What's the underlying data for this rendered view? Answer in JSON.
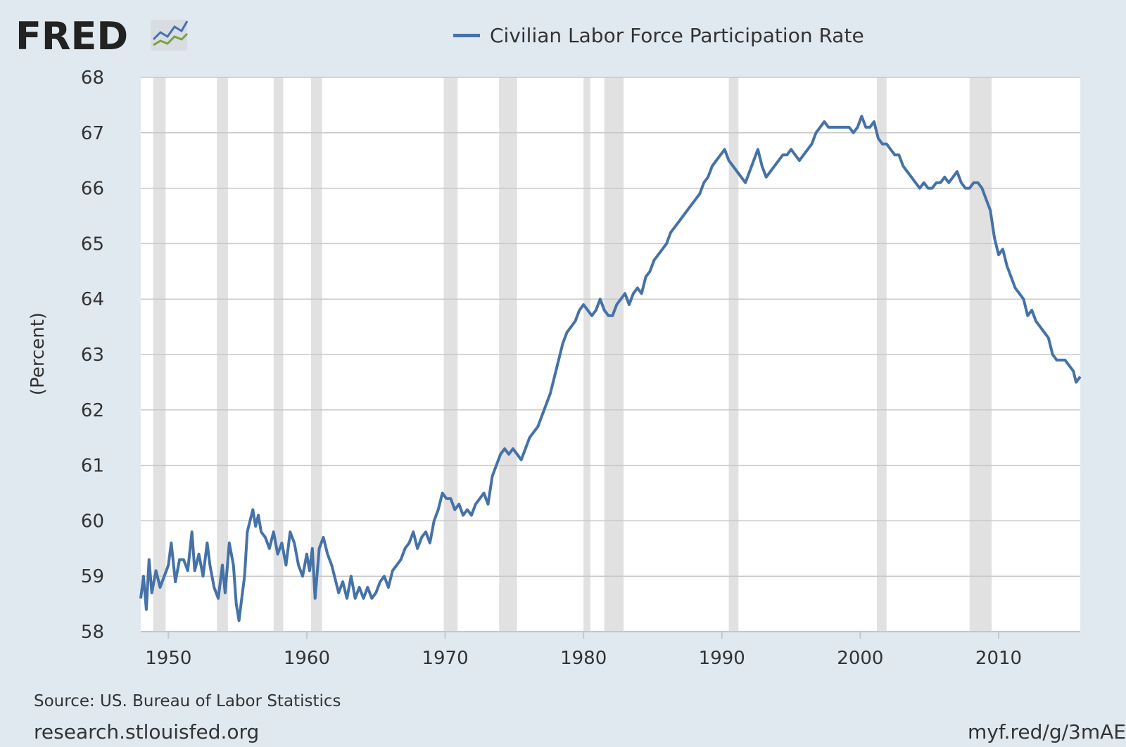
{
  "branding": {
    "logo_text": "FRED",
    "logo_icon": "fred-line-graph-icon"
  },
  "footer": {
    "source": "Source: US. Bureau of Labor Statistics",
    "site": "research.stlouisfed.org",
    "short_url": "myf.red/g/3mAE"
  },
  "colors": {
    "background": "#e1e9f0",
    "plot_bg": "#ffffff",
    "series": "#4572a7",
    "recession": "#e1e1e1",
    "grid": "#c8c8c8"
  },
  "chart_data": {
    "type": "line",
    "title": "",
    "xlabel": "",
    "ylabel": "(Percent)",
    "xlim": [
      1948.0,
      2015.9
    ],
    "ylim": [
      58,
      68
    ],
    "yticks": [
      "58",
      "59",
      "60",
      "61",
      "62",
      "63",
      "64",
      "65",
      "66",
      "67",
      "68"
    ],
    "xticks": [
      "1950",
      "1960",
      "1970",
      "1980",
      "1990",
      "2000",
      "2010"
    ],
    "grid": true,
    "legend": "top-center",
    "recessions": [
      [
        1948.9,
        1949.8
      ],
      [
        1953.5,
        1954.3
      ],
      [
        1957.6,
        1958.3
      ],
      [
        1960.3,
        1961.1
      ],
      [
        1969.9,
        1970.9
      ],
      [
        1973.9,
        1975.2
      ],
      [
        1980.0,
        1980.5
      ],
      [
        1981.5,
        1982.9
      ],
      [
        1990.5,
        1991.2
      ],
      [
        2001.2,
        2001.9
      ],
      [
        2007.9,
        2009.5
      ]
    ],
    "series": [
      {
        "name": "Civilian Labor Force Participation Rate",
        "color": "#4572a7",
        "points": [
          [
            1948.0,
            58.6
          ],
          [
            1948.2,
            59.0
          ],
          [
            1948.4,
            58.4
          ],
          [
            1948.6,
            59.3
          ],
          [
            1948.8,
            58.7
          ],
          [
            1949.1,
            59.1
          ],
          [
            1949.4,
            58.8
          ],
          [
            1949.7,
            59.0
          ],
          [
            1950.0,
            59.2
          ],
          [
            1950.2,
            59.6
          ],
          [
            1950.5,
            58.9
          ],
          [
            1950.8,
            59.3
          ],
          [
            1951.1,
            59.3
          ],
          [
            1951.4,
            59.1
          ],
          [
            1951.7,
            59.8
          ],
          [
            1951.9,
            59.1
          ],
          [
            1952.2,
            59.4
          ],
          [
            1952.5,
            59.0
          ],
          [
            1952.8,
            59.6
          ],
          [
            1953.0,
            59.2
          ],
          [
            1953.3,
            58.8
          ],
          [
            1953.6,
            58.6
          ],
          [
            1953.9,
            59.2
          ],
          [
            1954.1,
            58.7
          ],
          [
            1954.4,
            59.6
          ],
          [
            1954.7,
            59.2
          ],
          [
            1954.9,
            58.5
          ],
          [
            1955.1,
            58.2
          ],
          [
            1955.3,
            58.6
          ],
          [
            1955.5,
            59.0
          ],
          [
            1955.7,
            59.8
          ],
          [
            1955.9,
            60.0
          ],
          [
            1956.1,
            60.2
          ],
          [
            1956.3,
            59.9
          ],
          [
            1956.5,
            60.1
          ],
          [
            1956.7,
            59.8
          ],
          [
            1957.0,
            59.7
          ],
          [
            1957.3,
            59.5
          ],
          [
            1957.6,
            59.8
          ],
          [
            1957.9,
            59.4
          ],
          [
            1958.2,
            59.6
          ],
          [
            1958.5,
            59.2
          ],
          [
            1958.8,
            59.8
          ],
          [
            1959.1,
            59.6
          ],
          [
            1959.4,
            59.2
          ],
          [
            1959.7,
            59.0
          ],
          [
            1960.0,
            59.4
          ],
          [
            1960.2,
            59.1
          ],
          [
            1960.4,
            59.5
          ],
          [
            1960.6,
            58.6
          ],
          [
            1960.9,
            59.5
          ],
          [
            1961.2,
            59.7
          ],
          [
            1961.5,
            59.4
          ],
          [
            1961.8,
            59.2
          ],
          [
            1962.0,
            59.0
          ],
          [
            1962.3,
            58.7
          ],
          [
            1962.6,
            58.9
          ],
          [
            1962.9,
            58.6
          ],
          [
            1963.2,
            59.0
          ],
          [
            1963.5,
            58.6
          ],
          [
            1963.8,
            58.8
          ],
          [
            1964.1,
            58.6
          ],
          [
            1964.4,
            58.8
          ],
          [
            1964.7,
            58.6
          ],
          [
            1965.0,
            58.7
          ],
          [
            1965.3,
            58.9
          ],
          [
            1965.6,
            59.0
          ],
          [
            1965.9,
            58.8
          ],
          [
            1966.2,
            59.1
          ],
          [
            1966.5,
            59.2
          ],
          [
            1966.8,
            59.3
          ],
          [
            1967.1,
            59.5
          ],
          [
            1967.4,
            59.6
          ],
          [
            1967.7,
            59.8
          ],
          [
            1968.0,
            59.5
          ],
          [
            1968.3,
            59.7
          ],
          [
            1968.6,
            59.8
          ],
          [
            1968.9,
            59.6
          ],
          [
            1969.2,
            60.0
          ],
          [
            1969.5,
            60.2
          ],
          [
            1969.8,
            60.5
          ],
          [
            1970.1,
            60.4
          ],
          [
            1970.4,
            60.4
          ],
          [
            1970.7,
            60.2
          ],
          [
            1971.0,
            60.3
          ],
          [
            1971.3,
            60.1
          ],
          [
            1971.6,
            60.2
          ],
          [
            1971.9,
            60.1
          ],
          [
            1972.2,
            60.3
          ],
          [
            1972.5,
            60.4
          ],
          [
            1972.8,
            60.5
          ],
          [
            1973.1,
            60.3
          ],
          [
            1973.4,
            60.8
          ],
          [
            1973.7,
            61.0
          ],
          [
            1974.0,
            61.2
          ],
          [
            1974.3,
            61.3
          ],
          [
            1974.6,
            61.2
          ],
          [
            1974.9,
            61.3
          ],
          [
            1975.2,
            61.2
          ],
          [
            1975.5,
            61.1
          ],
          [
            1975.8,
            61.3
          ],
          [
            1976.1,
            61.5
          ],
          [
            1976.4,
            61.6
          ],
          [
            1976.7,
            61.7
          ],
          [
            1977.0,
            61.9
          ],
          [
            1977.3,
            62.1
          ],
          [
            1977.6,
            62.3
          ],
          [
            1977.9,
            62.6
          ],
          [
            1978.2,
            62.9
          ],
          [
            1978.5,
            63.2
          ],
          [
            1978.8,
            63.4
          ],
          [
            1979.1,
            63.5
          ],
          [
            1979.4,
            63.6
          ],
          [
            1979.7,
            63.8
          ],
          [
            1980.0,
            63.9
          ],
          [
            1980.3,
            63.8
          ],
          [
            1980.6,
            63.7
          ],
          [
            1980.9,
            63.8
          ],
          [
            1981.2,
            64.0
          ],
          [
            1981.5,
            63.8
          ],
          [
            1981.8,
            63.7
          ],
          [
            1982.1,
            63.7
          ],
          [
            1982.4,
            63.9
          ],
          [
            1982.7,
            64.0
          ],
          [
            1983.0,
            64.1
          ],
          [
            1983.3,
            63.9
          ],
          [
            1983.6,
            64.1
          ],
          [
            1983.9,
            64.2
          ],
          [
            1984.2,
            64.1
          ],
          [
            1984.5,
            64.4
          ],
          [
            1984.8,
            64.5
          ],
          [
            1985.1,
            64.7
          ],
          [
            1985.4,
            64.8
          ],
          [
            1985.7,
            64.9
          ],
          [
            1986.0,
            65.0
          ],
          [
            1986.3,
            65.2
          ],
          [
            1986.6,
            65.3
          ],
          [
            1986.9,
            65.4
          ],
          [
            1987.2,
            65.5
          ],
          [
            1987.5,
            65.6
          ],
          [
            1987.8,
            65.7
          ],
          [
            1988.1,
            65.8
          ],
          [
            1988.4,
            65.9
          ],
          [
            1988.7,
            66.1
          ],
          [
            1989.0,
            66.2
          ],
          [
            1989.3,
            66.4
          ],
          [
            1989.6,
            66.5
          ],
          [
            1989.9,
            66.6
          ],
          [
            1990.2,
            66.7
          ],
          [
            1990.5,
            66.5
          ],
          [
            1990.8,
            66.4
          ],
          [
            1991.1,
            66.3
          ],
          [
            1991.4,
            66.2
          ],
          [
            1991.7,
            66.1
          ],
          [
            1992.0,
            66.3
          ],
          [
            1992.3,
            66.5
          ],
          [
            1992.6,
            66.7
          ],
          [
            1992.9,
            66.4
          ],
          [
            1993.2,
            66.2
          ],
          [
            1993.5,
            66.3
          ],
          [
            1993.8,
            66.4
          ],
          [
            1994.1,
            66.5
          ],
          [
            1994.4,
            66.6
          ],
          [
            1994.7,
            66.6
          ],
          [
            1995.0,
            66.7
          ],
          [
            1995.3,
            66.6
          ],
          [
            1995.6,
            66.5
          ],
          [
            1995.9,
            66.6
          ],
          [
            1996.2,
            66.7
          ],
          [
            1996.5,
            66.8
          ],
          [
            1996.8,
            67.0
          ],
          [
            1997.1,
            67.1
          ],
          [
            1997.4,
            67.2
          ],
          [
            1997.7,
            67.1
          ],
          [
            1998.0,
            67.1
          ],
          [
            1998.3,
            67.1
          ],
          [
            1998.6,
            67.1
          ],
          [
            1998.9,
            67.1
          ],
          [
            1999.2,
            67.1
          ],
          [
            1999.5,
            67.0
          ],
          [
            1999.8,
            67.1
          ],
          [
            2000.1,
            67.3
          ],
          [
            2000.4,
            67.1
          ],
          [
            2000.7,
            67.1
          ],
          [
            2001.0,
            67.2
          ],
          [
            2001.3,
            66.9
          ],
          [
            2001.6,
            66.8
          ],
          [
            2001.9,
            66.8
          ],
          [
            2002.2,
            66.7
          ],
          [
            2002.5,
            66.6
          ],
          [
            2002.8,
            66.6
          ],
          [
            2003.1,
            66.4
          ],
          [
            2003.4,
            66.3
          ],
          [
            2003.7,
            66.2
          ],
          [
            2004.0,
            66.1
          ],
          [
            2004.3,
            66.0
          ],
          [
            2004.6,
            66.1
          ],
          [
            2004.9,
            66.0
          ],
          [
            2005.2,
            66.0
          ],
          [
            2005.5,
            66.1
          ],
          [
            2005.8,
            66.1
          ],
          [
            2006.1,
            66.2
          ],
          [
            2006.4,
            66.1
          ],
          [
            2006.7,
            66.2
          ],
          [
            2007.0,
            66.3
          ],
          [
            2007.3,
            66.1
          ],
          [
            2007.6,
            66.0
          ],
          [
            2007.9,
            66.0
          ],
          [
            2008.2,
            66.1
          ],
          [
            2008.5,
            66.1
          ],
          [
            2008.8,
            66.0
          ],
          [
            2009.1,
            65.8
          ],
          [
            2009.4,
            65.6
          ],
          [
            2009.7,
            65.1
          ],
          [
            2010.0,
            64.8
          ],
          [
            2010.3,
            64.9
          ],
          [
            2010.6,
            64.6
          ],
          [
            2010.9,
            64.4
          ],
          [
            2011.2,
            64.2
          ],
          [
            2011.5,
            64.1
          ],
          [
            2011.8,
            64.0
          ],
          [
            2012.1,
            63.7
          ],
          [
            2012.4,
            63.8
          ],
          [
            2012.7,
            63.6
          ],
          [
            2013.0,
            63.5
          ],
          [
            2013.3,
            63.4
          ],
          [
            2013.6,
            63.3
          ],
          [
            2013.9,
            63.0
          ],
          [
            2014.2,
            62.9
          ],
          [
            2014.5,
            62.9
          ],
          [
            2014.8,
            62.9
          ],
          [
            2015.1,
            62.8
          ],
          [
            2015.4,
            62.7
          ],
          [
            2015.6,
            62.5
          ],
          [
            2015.9,
            62.6
          ]
        ]
      }
    ]
  }
}
